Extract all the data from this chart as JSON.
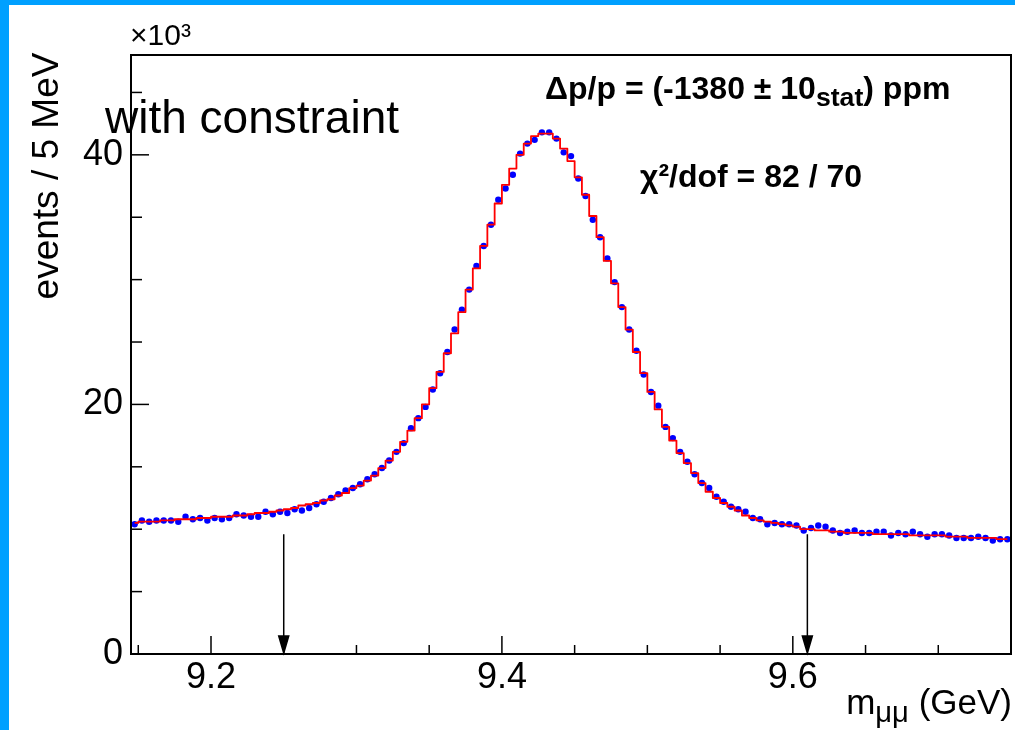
{
  "chart_data": {
    "type": "scatter",
    "xlabel": "m$_{μμ}$ (GeV)",
    "ylabel": "events / 5 MeV",
    "annotations": [
      "×10³",
      "with constraint",
      "Δp/p = (-1380 ± 10$_{stat}$) ppm",
      "χ²/dof = 82 / 70"
    ],
    "xlim": [
      9.145,
      9.75
    ],
    "ylim": [
      0,
      48
    ],
    "xticks": [
      {
        "value": 9.15,
        "label": null
      },
      9.2,
      {
        "value": 9.25,
        "label": null
      },
      {
        "value": 9.3,
        "label": null
      },
      {
        "value": 9.35,
        "label": null
      },
      9.4,
      {
        "value": 9.45,
        "label": null
      },
      {
        "value": 9.5,
        "label": null
      },
      {
        "value": 9.55,
        "label": null
      },
      9.6,
      {
        "value": 9.65,
        "label": null
      },
      {
        "value": 9.7,
        "label": null
      }
    ],
    "yticks": [
      0,
      {
        "value": 5,
        "label": null
      },
      {
        "value": 10,
        "label": null
      },
      {
        "value": 15,
        "label": null
      },
      20,
      {
        "value": 25,
        "label": null
      },
      {
        "value": 30,
        "label": null
      },
      {
        "value": 35,
        "label": null
      },
      40,
      {
        "value": 45,
        "label": null
      }
    ],
    "ref_lines": [
      {
        "axis": "x",
        "value": 9.25,
        "color": "#000000"
      },
      {
        "axis": "x",
        "value": 9.61,
        "color": "#000000"
      }
    ],
    "x": [
      9.1475,
      9.1525,
      9.1575,
      9.1625,
      9.1675,
      9.1725,
      9.1775,
      9.1825,
      9.1875,
      9.1925,
      9.1975,
      9.2025,
      9.2075,
      9.2125,
      9.2175,
      9.2225,
      9.2275,
      9.2325,
      9.2375,
      9.2425,
      9.2475,
      9.2525,
      9.2575,
      9.2625,
      9.2675,
      9.2725,
      9.2775,
      9.2825,
      9.2875,
      9.2925,
      9.2975,
      9.3025,
      9.3075,
      9.3125,
      9.3175,
      9.3225,
      9.3275,
      9.3325,
      9.3375,
      9.3425,
      9.3475,
      9.3525,
      9.3575,
      9.3625,
      9.3675,
      9.3725,
      9.3775,
      9.3825,
      9.3875,
      9.3925,
      9.3975,
      9.4025,
      9.4075,
      9.4125,
      9.4175,
      9.4225,
      9.4275,
      9.4325,
      9.4375,
      9.4425,
      9.4475,
      9.4525,
      9.4575,
      9.4625,
      9.4675,
      9.4725,
      9.4775,
      9.4825,
      9.4875,
      9.4925,
      9.4975,
      9.5025,
      9.5075,
      9.5125,
      9.5175,
      9.5225,
      9.5275,
      9.5325,
      9.5375,
      9.5425,
      9.5475,
      9.5525,
      9.5575,
      9.5625,
      9.5675,
      9.5725,
      9.5775,
      9.5825,
      9.5875,
      9.5925,
      9.5975,
      9.6025,
      9.6075,
      9.6125,
      9.6175,
      9.6225,
      9.6275,
      9.6325,
      9.6375,
      9.6425,
      9.6475,
      9.6525,
      9.6575,
      9.6625,
      9.6675,
      9.6725,
      9.6775,
      9.6825,
      9.6875,
      9.6925,
      9.6975,
      9.7025,
      9.7075,
      9.7125,
      9.7175,
      9.7225,
      9.7275,
      9.7325,
      9.7375,
      9.7425,
      9.7475
    ],
    "series": [
      {
        "type": "scatter",
        "marker": "circle",
        "color": "#0000ff",
        "values": [
          10.4,
          10.7,
          10.6,
          10.7,
          10.7,
          10.7,
          10.6,
          11.0,
          10.8,
          10.9,
          10.7,
          10.9,
          10.8,
          10.9,
          11.2,
          11.1,
          11.0,
          11.0,
          11.4,
          11.2,
          11.4,
          11.3,
          11.6,
          11.5,
          11.7,
          12.0,
          12.2,
          12.5,
          12.8,
          13.1,
          13.3,
          13.6,
          14.0,
          14.4,
          14.9,
          15.5,
          16.2,
          16.9,
          18.1,
          18.9,
          19.8,
          21.2,
          22.5,
          24.2,
          26.0,
          27.6,
          29.2,
          31.1,
          32.7,
          34.4,
          36.4,
          37.3,
          38.4,
          40.1,
          40.9,
          41.2,
          41.8,
          41.8,
          41.3,
          40.2,
          39.9,
          38.1,
          36.7,
          34.8,
          33.4,
          31.7,
          29.8,
          27.8,
          26.0,
          24.3,
          22.4,
          21.0,
          19.9,
          18.2,
          17.3,
          16.2,
          15.4,
          14.4,
          13.7,
          13.3,
          12.6,
          12.2,
          11.8,
          11.6,
          11.4,
          10.9,
          10.8,
          10.4,
          10.5,
          10.4,
          10.4,
          10.3,
          9.9,
          10.1,
          10.3,
          10.2,
          9.9,
          9.7,
          9.8,
          9.9,
          9.7,
          9.7,
          9.8,
          9.8,
          9.5,
          9.7,
          9.6,
          9.8,
          9.6,
          9.4,
          9.6,
          9.6,
          9.5,
          9.3,
          9.3,
          9.3,
          9.4,
          9.3,
          9.1,
          9.2,
          9.2
        ]
      },
      {
        "type": "step",
        "marker": "none",
        "color": "#ff0000",
        "values": [
          10.5,
          10.6,
          10.6,
          10.6,
          10.7,
          10.7,
          10.8,
          10.8,
          10.8,
          10.9,
          10.9,
          11.0,
          11.0,
          11.0,
          11.1,
          11.1,
          11.2,
          11.3,
          11.3,
          11.4,
          11.5,
          11.6,
          11.7,
          11.9,
          12.0,
          12.1,
          12.3,
          12.4,
          12.7,
          12.9,
          13.3,
          13.5,
          13.9,
          14.3,
          14.9,
          15.5,
          16.2,
          17.0,
          17.9,
          18.9,
          20.0,
          21.3,
          22.6,
          24.1,
          25.7,
          27.4,
          29.2,
          30.9,
          32.7,
          34.4,
          36.1,
          37.6,
          38.9,
          40.0,
          40.9,
          41.5,
          41.7,
          41.7,
          41.3,
          40.5,
          39.5,
          38.2,
          36.8,
          35.1,
          33.4,
          31.5,
          29.7,
          27.8,
          26.0,
          24.2,
          22.5,
          21.0,
          19.6,
          18.2,
          17.1,
          16.1,
          15.3,
          14.5,
          13.7,
          13.0,
          12.5,
          12.1,
          11.8,
          11.5,
          11.1,
          10.9,
          10.7,
          10.6,
          10.5,
          10.4,
          10.3,
          10.2,
          10.0,
          10.0,
          9.9,
          9.9,
          9.8,
          9.8,
          9.7,
          9.7,
          9.7,
          9.7,
          9.6,
          9.6,
          9.6,
          9.6,
          9.6,
          9.5,
          9.5,
          9.5,
          9.5,
          9.5,
          9.4,
          9.4,
          9.4,
          9.3,
          9.3,
          9.3,
          9.3,
          9.2,
          9.2
        ]
      }
    ]
  }
}
